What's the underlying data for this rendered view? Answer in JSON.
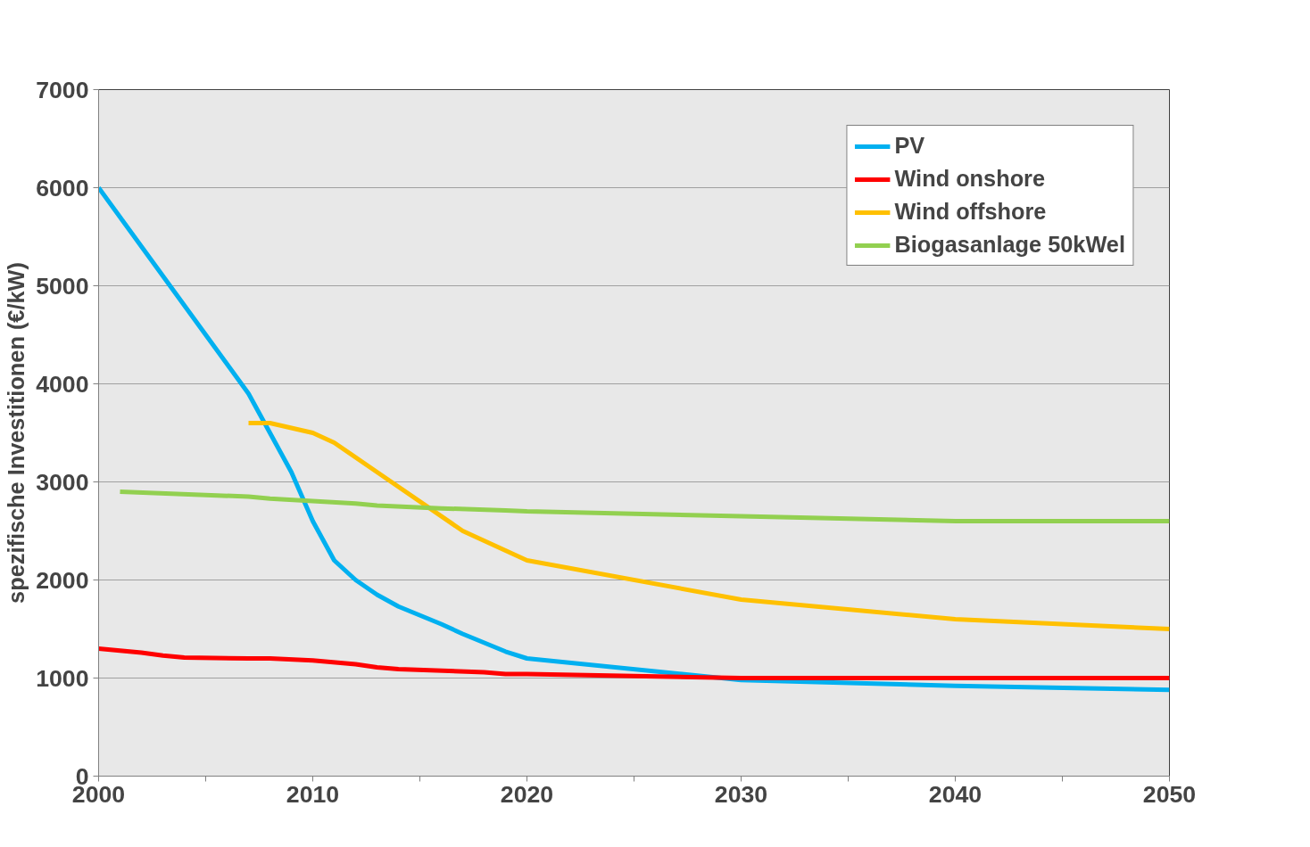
{
  "chart_data": {
    "type": "line",
    "ylabel": "spezifische Investitionen (€/kW)",
    "xlim": [
      2000,
      2050
    ],
    "ylim": [
      0,
      7000
    ],
    "xticks": [
      2000,
      {
        "value": 2005,
        "label": null
      },
      2010,
      {
        "value": 2015,
        "label": null
      },
      2020,
      {
        "value": 2025,
        "label": null
      },
      2030,
      {
        "value": 2035,
        "label": null
      },
      2040,
      {
        "value": 2045,
        "label": null
      },
      2050
    ],
    "yticks": [
      0,
      1000,
      2000,
      3000,
      4000,
      5000,
      6000,
      7000
    ],
    "grid": "y",
    "legend": "top right",
    "line_style": "solid",
    "marker": "none",
    "series": [
      {
        "name": "PV",
        "color": "#00b0f0",
        "x": [
          2000,
          2002,
          2004,
          2005,
          2007,
          2008,
          2009,
          2010,
          2011,
          2012,
          2013,
          2014,
          2016,
          2017,
          2019,
          2020,
          2030,
          2040,
          2050
        ],
        "values": [
          6000,
          5400,
          4800,
          4500,
          3900,
          3500,
          3100,
          2600,
          2200,
          2000,
          1850,
          1730,
          1550,
          1450,
          1270,
          1200,
          980,
          920,
          880
        ]
      },
      {
        "name": "Wind onshore",
        "color": "#ff0000",
        "x": [
          2000,
          2002,
          2003,
          2004,
          2007,
          2008,
          2010,
          2012,
          2013,
          2014,
          2018,
          2019,
          2020,
          2030,
          2050
        ],
        "values": [
          1300,
          1260,
          1230,
          1210,
          1200,
          1200,
          1180,
          1140,
          1110,
          1090,
          1060,
          1040,
          1040,
          1000,
          1000
        ]
      },
      {
        "name": "Wind offshore",
        "color": "#ffc000",
        "x": [
          2007,
          2008,
          2010,
          2011,
          2013,
          2017,
          2020,
          2030,
          2040,
          2050
        ],
        "values": [
          3600,
          3600,
          3500,
          3400,
          3100,
          2500,
          2200,
          1800,
          1600,
          1500
        ]
      },
      {
        "name": "Biogasanlage 50kWel",
        "color": "#92d050",
        "x": [
          2001,
          2007,
          2008,
          2012,
          2013,
          2016,
          2019,
          2020,
          2030,
          2040,
          2050
        ],
        "values": [
          2900,
          2850,
          2830,
          2780,
          2760,
          2730,
          2710,
          2700,
          2650,
          2600,
          2600
        ]
      }
    ]
  }
}
